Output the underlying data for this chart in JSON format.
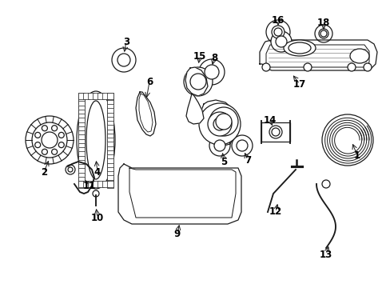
{
  "background_color": "#ffffff",
  "line_color": "#1a1a1a",
  "label_color": "#000000",
  "label_fontsize": 8.5,
  "lw": 0.9
}
